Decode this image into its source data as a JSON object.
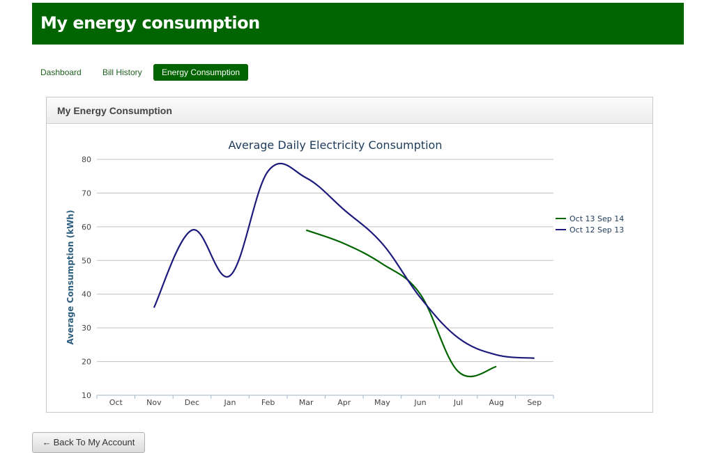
{
  "header": {
    "title": "My energy consumption"
  },
  "nav": {
    "items": [
      {
        "label": "Dashboard",
        "active": false
      },
      {
        "label": "Bill History",
        "active": false
      },
      {
        "label": "Energy Consumption",
        "active": true
      }
    ]
  },
  "panel": {
    "title": "My Energy Consumption"
  },
  "chart_data": {
    "type": "line",
    "title": "Average Daily Electricity Consumption",
    "xlabel": "",
    "ylabel": "Average Consumption (kWh)",
    "categories": [
      "Oct",
      "Nov",
      "Dec",
      "Jan",
      "Feb",
      "Mar",
      "Apr",
      "May",
      "Jun",
      "Jul",
      "Aug",
      "Sep"
    ],
    "ylim": [
      10,
      80
    ],
    "yticks": [
      10,
      20,
      30,
      40,
      50,
      60,
      70,
      80
    ],
    "grid": true,
    "legend_position": "right",
    "series": [
      {
        "name": "Oct 13 Sep 14",
        "color": "#006400",
        "values": [
          null,
          null,
          null,
          null,
          null,
          59,
          55,
          49,
          40,
          17,
          18.5,
          null
        ]
      },
      {
        "name": "Oct 12 Sep 13",
        "color": "#1c1a7a",
        "values": [
          null,
          36,
          59,
          45.5,
          76.5,
          74.5,
          65,
          55,
          39,
          27,
          22,
          21
        ]
      }
    ]
  },
  "footer": {
    "back_button_label": "Back To My Account",
    "back_icon": "left-arrow-icon"
  },
  "colors": {
    "brand": "#006400",
    "axis_text": "#2e5f7f"
  }
}
